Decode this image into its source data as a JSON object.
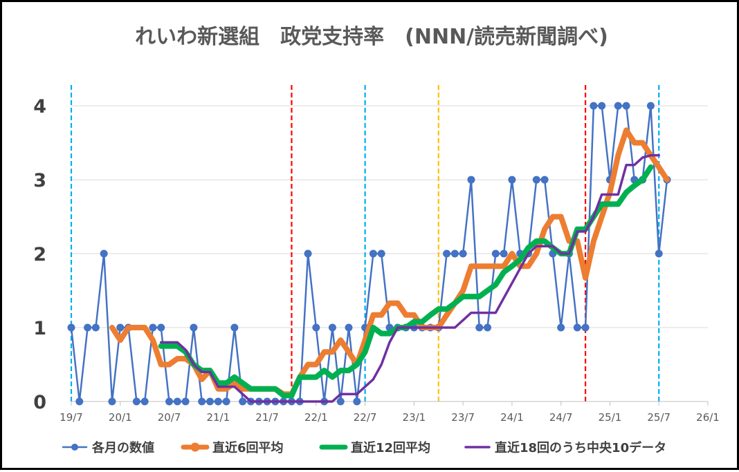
{
  "chart_data": {
    "type": "line",
    "title": "れいわ新選組　政党支持率　(NNN/読売新聞調べ)",
    "xlabel": "",
    "ylabel": "",
    "x_start": "2019-07",
    "x_end": "2025-09",
    "x_ticks": [
      "19/7",
      "20/1",
      "20/7",
      "21/1",
      "21/7",
      "22/1",
      "22/7",
      "23/1",
      "23/7",
      "24/1",
      "24/7",
      "25/1",
      "25/7",
      "26/1"
    ],
    "x_tick_dates": [
      "2019-07",
      "2020-01",
      "2020-07",
      "2021-01",
      "2021-07",
      "2022-01",
      "2022-07",
      "2023-01",
      "2023-07",
      "2024-01",
      "2024-07",
      "2025-01",
      "2025-07",
      "2026-01"
    ],
    "y_ticks": [
      "0",
      "1",
      "2",
      "3",
      "4"
    ],
    "y_tick_values": [
      0,
      1,
      2,
      3,
      4
    ],
    "ylim": [
      0,
      4.3
    ],
    "grid": true,
    "legend_position": "bottom",
    "x": [
      "2019-07",
      "2019-08",
      "2019-09",
      "2019-10",
      "2019-11",
      "2019-12",
      "2020-01",
      "2020-02",
      "2020-03",
      "2020-04",
      "2020-05",
      "2020-06",
      "2020-07",
      "2020-08",
      "2020-09",
      "2020-10",
      "2020-11",
      "2020-12",
      "2021-01",
      "2021-02",
      "2021-03",
      "2021-04",
      "2021-05",
      "2021-06",
      "2021-07",
      "2021-08",
      "2021-09",
      "2021-10",
      "2021-11",
      "2021-12",
      "2022-01",
      "2022-02",
      "2022-03",
      "2022-04",
      "2022-05",
      "2022-06",
      "2022-07",
      "2022-08",
      "2022-09",
      "2022-10",
      "2022-11",
      "2022-12",
      "2023-01",
      "2023-02",
      "2023-03",
      "2023-04",
      "2023-05",
      "2023-06",
      "2023-07",
      "2023-08",
      "2023-09",
      "2023-10",
      "2023-11",
      "2023-12",
      "2024-01",
      "2024-02",
      "2024-03",
      "2024-04",
      "2024-05",
      "2024-06",
      "2024-07",
      "2024-08",
      "2024-09",
      "2024-10",
      "2024-11",
      "2024-12",
      "2025-01",
      "2025-02",
      "2025-03",
      "2025-04",
      "2025-05",
      "2025-06",
      "2025-07",
      "2025-08"
    ],
    "series": [
      {
        "name": "各月の数値",
        "color": "#4472C4",
        "values": [
          1,
          0,
          1,
          1,
          2,
          0,
          1,
          1,
          0,
          0,
          1,
          1,
          0,
          0,
          0,
          1,
          0,
          0,
          0,
          0,
          1,
          0,
          0,
          0,
          0,
          0,
          0,
          0,
          0,
          2,
          1,
          0,
          1,
          0,
          1,
          0,
          1,
          2,
          2,
          1,
          1,
          1,
          1,
          1,
          1,
          1,
          2,
          2,
          2,
          3,
          1,
          1,
          2,
          2,
          3,
          2,
          2,
          3,
          3,
          2,
          1,
          2,
          1,
          1,
          4,
          4,
          3,
          4,
          4,
          3,
          3,
          4,
          2,
          3
        ]
      },
      {
        "name": "直近6回平均",
        "color": "#ED7D31",
        "values": [
          null,
          null,
          null,
          null,
          null,
          1.0,
          0.83,
          1.0,
          1.0,
          1.0,
          0.83,
          0.5,
          0.5,
          0.58,
          0.58,
          0.5,
          0.3,
          0.42,
          0.17,
          0.17,
          0.25,
          0.17,
          0.17,
          0.17,
          0.17,
          0.17,
          0.1,
          0.1,
          0.33,
          0.5,
          0.5,
          0.67,
          0.67,
          0.83,
          0.67,
          0.5,
          0.83,
          1.17,
          1.17,
          1.33,
          1.33,
          1.17,
          1.17,
          1.0,
          1.0,
          1.0,
          1.17,
          1.33,
          1.5,
          1.83,
          1.83,
          1.83,
          1.83,
          1.83,
          2.0,
          1.83,
          1.83,
          2.0,
          2.33,
          2.5,
          2.5,
          2.17,
          2.17,
          1.67,
          2.17,
          2.5,
          2.83,
          3.33,
          3.67,
          3.5,
          3.5,
          3.33,
          3.17,
          3.0
        ]
      },
      {
        "name": "直近12回平均",
        "color": "#00B050",
        "values": [
          null,
          null,
          null,
          null,
          null,
          null,
          null,
          null,
          null,
          null,
          null,
          0.75,
          0.75,
          0.75,
          0.67,
          0.5,
          0.42,
          0.42,
          0.25,
          0.25,
          0.33,
          0.25,
          0.17,
          0.17,
          0.17,
          0.17,
          0.08,
          0.08,
          0.33,
          0.33,
          0.33,
          0.42,
          0.33,
          0.42,
          0.42,
          0.5,
          0.67,
          1.0,
          0.92,
          0.92,
          1.0,
          1.0,
          1.08,
          1.08,
          1.17,
          1.25,
          1.25,
          1.33,
          1.42,
          1.42,
          1.42,
          1.5,
          1.58,
          1.75,
          1.83,
          1.92,
          2.08,
          2.17,
          2.17,
          2.08,
          2.0,
          2.0,
          2.33,
          2.33,
          2.5,
          2.67,
          2.67,
          2.67,
          2.83,
          2.92,
          3.0,
          3.17,
          null,
          null
        ]
      },
      {
        "name": "直近18回のうち中央10データ",
        "color": "#7030A0",
        "values": [
          null,
          null,
          null,
          null,
          null,
          null,
          null,
          null,
          null,
          null,
          null,
          0.8,
          0.8,
          0.8,
          0.7,
          0.5,
          0.4,
          0.4,
          0.2,
          0.2,
          0.2,
          0.1,
          0.0,
          0.0,
          0.0,
          0.0,
          0.0,
          0.0,
          0.0,
          0.0,
          0.0,
          0.0,
          0.0,
          0.1,
          0.1,
          0.1,
          0.2,
          0.3,
          0.5,
          0.8,
          1.0,
          1.0,
          1.0,
          1.0,
          1.0,
          1.0,
          1.0,
          1.0,
          1.1,
          1.2,
          1.2,
          1.2,
          1.2,
          1.4,
          1.6,
          1.8,
          2.0,
          2.1,
          2.1,
          2.1,
          2.0,
          2.0,
          2.3,
          2.3,
          2.5,
          2.8,
          2.8,
          2.8,
          3.2,
          3.2,
          3.3,
          3.33,
          3.33,
          null
        ]
      }
    ],
    "vertical_lines": [
      {
        "date": "2019-07",
        "color": "#00B0F0"
      },
      {
        "date": "2021-10",
        "color": "#FF0000"
      },
      {
        "date": "2022-07",
        "color": "#00B0F0"
      },
      {
        "date": "2023-04",
        "color": "#FFC000"
      },
      {
        "date": "2024-10",
        "color": "#FF0000"
      },
      {
        "date": "2025-07",
        "color": "#00B0F0"
      }
    ]
  }
}
